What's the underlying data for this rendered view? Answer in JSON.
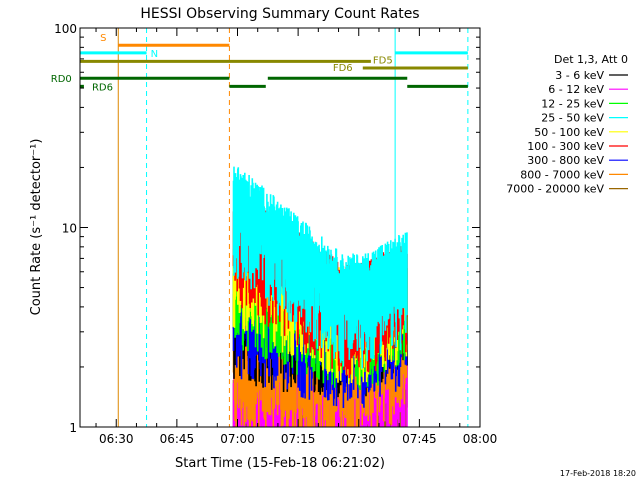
{
  "chart_data": {
    "type": "line",
    "title": "HESSI Observing Summary Count Rates",
    "xlabel": "Start Time (15-Feb-18 06:21:02)",
    "ylabel": "Count Rate (s⁻¹ detector⁻¹)",
    "yscale": "log",
    "ylim": [
      1,
      100
    ],
    "xlim": [
      "06:21:02",
      "08:00:00"
    ],
    "x_ticks": [
      "06:30",
      "06:45",
      "07:00",
      "07:15",
      "07:30",
      "07:45",
      "08:00"
    ],
    "y_ticks": [
      "1",
      "10",
      "100"
    ],
    "footer_timestamp": "17-Feb-2018 18:20",
    "legend": {
      "placement": "right",
      "header": "Det 1,3, Att 0",
      "entries": [
        {
          "label": "3 - 6 keV",
          "color": "#000000"
        },
        {
          "label": "6 - 12 keV",
          "color": "#ff00ff"
        },
        {
          "label": "12 - 25 keV",
          "color": "#00ff00"
        },
        {
          "label": "25 - 50 keV",
          "color": "#00ffff"
        },
        {
          "label": "50 - 100 keV",
          "color": "#ffff00"
        },
        {
          "label": "100 - 300 keV",
          "color": "#ff0000"
        },
        {
          "label": "300 - 800 keV",
          "color": "#0000ff"
        },
        {
          "label": "800 - 7000 keV",
          "color": "#ff8800"
        },
        {
          "label": "7000 - 20000 keV",
          "color": "#996600"
        }
      ]
    },
    "flag_bars": [
      {
        "label": "S",
        "color": "#ff8800",
        "y": 82,
        "segments": [
          [
            "06:30:30",
            "06:58:00"
          ]
        ]
      },
      {
        "label": "N",
        "color": "#00ffff",
        "y": 75,
        "segments": [
          [
            "06:21:02",
            "06:37:30"
          ],
          [
            "07:39:00",
            "07:57:00"
          ]
        ]
      },
      {
        "label": "FD5",
        "color": "#888800",
        "y": 68,
        "segments": [
          [
            "06:21:02",
            "07:33:00"
          ]
        ]
      },
      {
        "label": "FD6",
        "color": "#888800",
        "y": 63,
        "segments": [
          [
            "07:31:00",
            "07:57:00"
          ]
        ]
      },
      {
        "label": "RD0",
        "color": "#006600",
        "y": 56,
        "segments": [
          [
            "06:21:02",
            "06:58:00"
          ],
          [
            "07:07:30",
            "07:42:00"
          ]
        ]
      },
      {
        "label": "RD6",
        "color": "#006600",
        "y": 51,
        "segments": [
          [
            "06:21:02",
            "06:22:00"
          ],
          [
            "06:58:00",
            "07:07:00"
          ],
          [
            "07:42:00",
            "07:57:00"
          ]
        ]
      }
    ],
    "vertical_markers": [
      {
        "time": "06:30:30",
        "color": "#dd8800",
        "style": "solid"
      },
      {
        "time": "06:21:02",
        "color": "#00ffff",
        "style": "solid"
      },
      {
        "time": "07:39:00",
        "color": "#00ffff",
        "style": "solid"
      },
      {
        "time": "06:37:30",
        "color": "#00ffff",
        "style": "dashed"
      },
      {
        "time": "07:57:00",
        "color": "#00ffff",
        "style": "dashed"
      },
      {
        "time": "06:58:00",
        "color": "#ff8800",
        "style": "dashed"
      }
    ],
    "data_window": [
      "06:59:00",
      "07:42:00"
    ],
    "series": [
      {
        "name": "3 - 6 keV",
        "color": "#000000",
        "level_start": 4.5,
        "level_end": 4.0
      },
      {
        "name": "6 - 12 keV",
        "color": "#ff00ff",
        "level_start": 1.6,
        "level_end": 1.8
      },
      {
        "name": "12 - 25 keV",
        "color": "#00ff00",
        "level_start": 7.0,
        "level_end": 4.2
      },
      {
        "name": "25 - 50 keV",
        "color": "#00ffff",
        "level_start": 16.0,
        "level_end": 5.5
      },
      {
        "name": "50 - 100 keV",
        "color": "#ffff00",
        "level_start": 9.0,
        "level_end": 4.6
      },
      {
        "name": "100 - 300 keV",
        "color": "#ff0000",
        "level_start": 12.0,
        "level_end": 5.0
      },
      {
        "name": "300 - 800 keV",
        "color": "#0000ff",
        "level_start": 5.0,
        "level_end": 3.5
      },
      {
        "name": "800 - 7000 keV",
        "color": "#ff8800",
        "level_start": 2.6,
        "level_end": 2.4
      },
      {
        "name": "7000 - 20000 keV",
        "color": "#996600",
        "level_start": 1.4,
        "level_end": 1.4
      }
    ]
  }
}
